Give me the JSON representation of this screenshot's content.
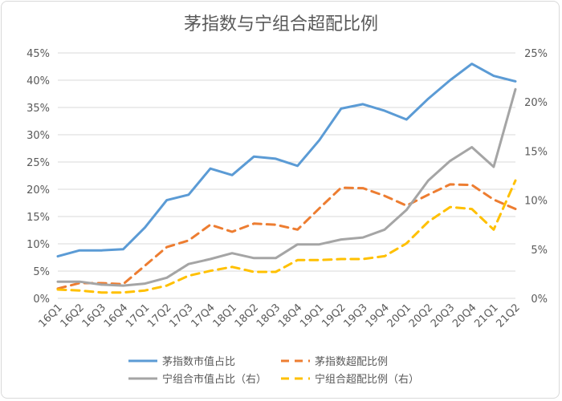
{
  "chart_data": {
    "type": "line",
    "title": "茅指数与宁组合超配比例",
    "categories": [
      "16Q1",
      "16Q2",
      "16Q3",
      "16Q4",
      "17Q1",
      "17Q2",
      "17Q3",
      "17Q4",
      "18Q1",
      "18Q2",
      "18Q3",
      "18Q4",
      "19Q1",
      "19Q2",
      "19Q3",
      "19Q4",
      "20Q1",
      "20Q2",
      "20Q3",
      "20Q4",
      "21Q1",
      "21Q2"
    ],
    "left_axis": {
      "min": 0,
      "max": 45,
      "ticks": [
        "0%",
        "5%",
        "10%",
        "15%",
        "20%",
        "25%",
        "30%",
        "35%",
        "40%",
        "45%"
      ]
    },
    "right_axis": {
      "min": 0,
      "max": 25,
      "ticks": [
        "0%",
        "5%",
        "10%",
        "15%",
        "20%",
        "25%"
      ]
    },
    "series": [
      {
        "name": "茅指数市值占比",
        "axis": "left",
        "color": "#5b9bd5",
        "dash": false,
        "values": [
          7.7,
          8.8,
          8.8,
          9.0,
          13.0,
          18.0,
          19.0,
          23.8,
          22.6,
          26.0,
          25.6,
          24.3,
          29.0,
          34.8,
          35.6,
          34.4,
          32.8,
          36.6,
          40.0,
          43.0,
          40.8,
          39.8
        ]
      },
      {
        "name": "茅指数超配比例",
        "axis": "left",
        "color": "#ed7d31",
        "dash": true,
        "values": [
          1.8,
          2.8,
          2.8,
          2.6,
          6.0,
          9.4,
          10.6,
          13.5,
          12.2,
          13.7,
          13.5,
          12.6,
          16.5,
          20.3,
          20.2,
          18.8,
          17.0,
          19.0,
          20.9,
          20.8,
          18.1,
          16.4
        ]
      },
      {
        "name": "宁组合市值占比（右）",
        "axis": "right",
        "color": "#a5a5a5",
        "dash": false,
        "values": [
          1.7,
          1.7,
          1.4,
          1.3,
          1.5,
          2.1,
          3.5,
          4.0,
          4.6,
          4.1,
          4.1,
          5.5,
          5.5,
          6.0,
          6.2,
          7.0,
          9.0,
          12.0,
          14.0,
          15.4,
          13.4,
          21.3
        ]
      },
      {
        "name": "宁组合超配比例（右）",
        "axis": "right",
        "color": "#ffc000",
        "dash": true,
        "values": [
          0.9,
          0.8,
          0.6,
          0.6,
          0.8,
          1.3,
          2.3,
          2.8,
          3.2,
          2.7,
          2.7,
          3.9,
          3.9,
          4.0,
          4.0,
          4.3,
          5.6,
          7.8,
          9.3,
          9.1,
          7.0,
          12.0
        ]
      }
    ],
    "grid": true,
    "legend_position": "bottom"
  }
}
